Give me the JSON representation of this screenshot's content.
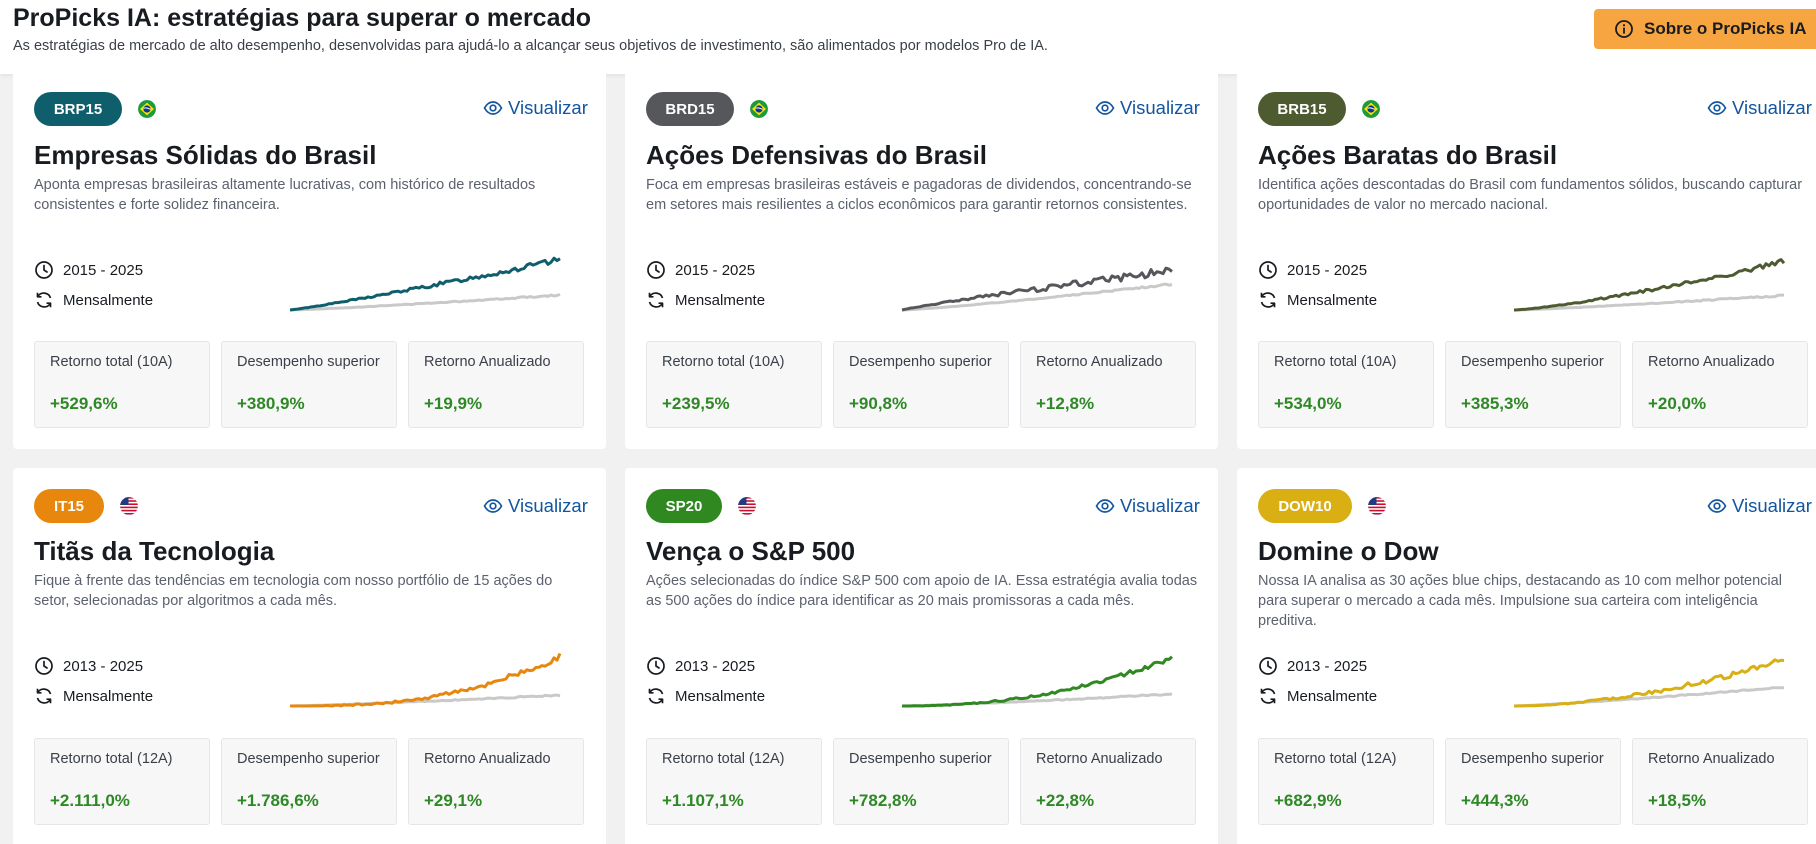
{
  "header": {
    "title": "ProPicks IA: estratégias para superar o mercado",
    "subtitle": "As estratégias de mercado de alto desempenho, desenvolvidas para ajudá-lo a alcançar seus objetivos de investimento, são alimentados por modelos Pro de IA.",
    "about_button": "Sobre o ProPicks IA"
  },
  "colors": {
    "accent_orange": "#f7a541",
    "link_blue": "#1256a0",
    "positive_green": "#2f8826",
    "benchmark_gray": "#c9c9c9"
  },
  "cards": [
    {
      "code": "BRP15",
      "pill_color": "#0f5e6c",
      "flag": "brazil-flag-icon",
      "view_label": "Visualizar",
      "title": "Empresas Sólidas do Brasil",
      "description": "Aponta empresas brasileiras altamente lucrativas, com histórico de resultados consistentes e forte solidez financeira.",
      "period": "2015 - 2025",
      "frequency": "Mensalmente",
      "stats": [
        {
          "label": "Retorno total (10A)",
          "value": "+529,6%"
        },
        {
          "label": "Desempenho superior",
          "value": "+380,9%"
        },
        {
          "label": "Retorno Anualizado",
          "value": "+19,9%"
        }
      ],
      "line_color": "#0f5e6c"
    },
    {
      "code": "BRD15",
      "pill_color": "#55575a",
      "flag": "brazil-flag-icon",
      "view_label": "Visualizar",
      "title": "Ações Defensivas do Brasil",
      "description": "Foca em empresas brasileiras estáveis e pagadoras de dividendos, concentrando-se em setores mais resilientes a ciclos econômicos para garantir retornos consistentes.",
      "period": "2015 - 2025",
      "frequency": "Mensalmente",
      "stats": [
        {
          "label": "Retorno total (10A)",
          "value": "+239,5%"
        },
        {
          "label": "Desempenho superior",
          "value": "+90,8%"
        },
        {
          "label": "Retorno Anualizado",
          "value": "+12,8%"
        }
      ],
      "line_color": "#55575a"
    },
    {
      "code": "BRB15",
      "pill_color": "#4e5a30",
      "flag": "brazil-flag-icon",
      "view_label": "Visualizar",
      "title": "Ações Baratas do Brasil",
      "description": "Identifica ações descontadas do Brasil com fundamentos sólidos, buscando capturar oportunidades de valor no mercado nacional.",
      "period": "2015 - 2025",
      "frequency": "Mensalmente",
      "stats": [
        {
          "label": "Retorno total (10A)",
          "value": "+534,0%"
        },
        {
          "label": "Desempenho superior",
          "value": "+385,3%"
        },
        {
          "label": "Retorno Anualizado",
          "value": "+20,0%"
        }
      ],
      "line_color": "#4e5a30"
    },
    {
      "code": "IT15",
      "pill_color": "#e8870d",
      "flag": "usa-flag-icon",
      "view_label": "Visualizar",
      "title": "Titãs da Tecnologia",
      "description": "Fique à frente das tendências em tecnologia com nosso portfólio de 15 ações do setor, selecionadas por algoritmos a cada mês.",
      "period": "2013 - 2025",
      "frequency": "Mensalmente",
      "stats": [
        {
          "label": "Retorno total (12A)",
          "value": "+2.111,0%"
        },
        {
          "label": "Desempenho superior",
          "value": "+1.786,6%"
        },
        {
          "label": "Retorno Anualizado",
          "value": "+29,1%"
        }
      ],
      "line_color": "#e8870d"
    },
    {
      "code": "SP20",
      "pill_color": "#2f8820",
      "flag": "usa-flag-icon",
      "view_label": "Visualizar",
      "title": "Vença o S&P 500",
      "description": "Ações selecionadas do índice S&P 500 com apoio de IA. Essa estratégia avalia todas as 500 ações do índice para identificar as 20 mais promissoras a cada mês.",
      "period": "2013 - 2025",
      "frequency": "Mensalmente",
      "stats": [
        {
          "label": "Retorno total (12A)",
          "value": "+1.107,1%"
        },
        {
          "label": "Desempenho superior",
          "value": "+782,8%"
        },
        {
          "label": "Retorno Anualizado",
          "value": "+22,8%"
        }
      ],
      "line_color": "#2f8820"
    },
    {
      "code": "DOW10",
      "pill_color": "#d9af13",
      "flag": "usa-flag-icon",
      "view_label": "Visualizar",
      "title": "Domine o Dow",
      "description": "Nossa IA analisa as 30 ações blue chips, destacando as 10 com melhor potencial para superar o mercado a cada mês. Impulsione sua carteira com inteligência preditiva.",
      "period": "2013 - 2025",
      "frequency": "Mensalmente",
      "stats": [
        {
          "label": "Retorno total (12A)",
          "value": "+682,9%"
        },
        {
          "label": "Desempenho superior",
          "value": "+444,3%"
        },
        {
          "label": "Retorno Anualizado",
          "value": "+18,5%"
        }
      ],
      "line_color": "#d9af13"
    }
  ]
}
